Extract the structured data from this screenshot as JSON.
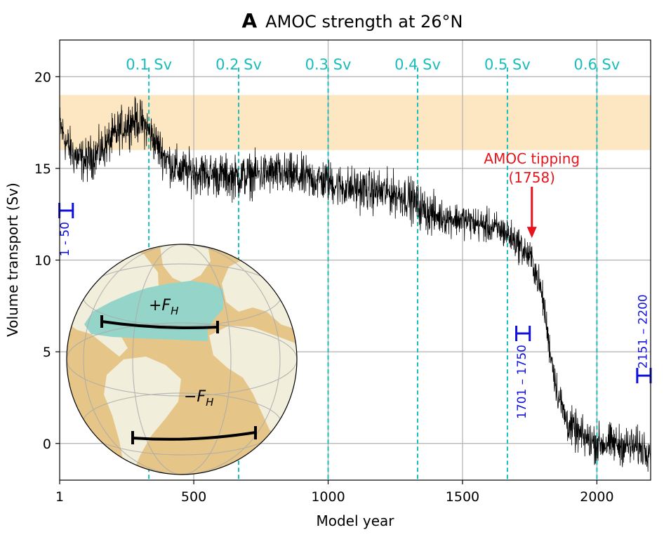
{
  "chart_data": {
    "type": "line",
    "panel_letter": "A",
    "title": "AMOC strength at 26°N",
    "xlabel": "Model year",
    "ylabel": "Volume transport (Sv)",
    "xlim": [
      1,
      2200
    ],
    "ylim": [
      -2,
      22
    ],
    "x_ticks": [
      1,
      500,
      1000,
      1500,
      2000
    ],
    "y_ticks": [
      0,
      5,
      10,
      15,
      20
    ],
    "grid": true,
    "observed_band": {
      "y0": 16,
      "y1": 19,
      "color": "#fde7c2"
    },
    "forcing_markers": [
      {
        "x": 333,
        "label": "0.1 Sv"
      },
      {
        "x": 667,
        "label": "0.2 Sv"
      },
      {
        "x": 1000,
        "label": "0.3 Sv"
      },
      {
        "x": 1333,
        "label": "0.4 Sv"
      },
      {
        "x": 1667,
        "label": "0.5 Sv"
      },
      {
        "x": 2000,
        "label": "0.6 Sv"
      }
    ],
    "forcing_color": "#17bebb",
    "series": [
      {
        "color": "#000000",
        "x": [
          1,
          25,
          50,
          75,
          100,
          125,
          150,
          175,
          200,
          225,
          250,
          275,
          300,
          325,
          350,
          375,
          400,
          425,
          450,
          475,
          500,
          550,
          600,
          650,
          700,
          750,
          800,
          850,
          900,
          950,
          1000,
          1050,
          1100,
          1150,
          1200,
          1250,
          1300,
          1350,
          1400,
          1450,
          1500,
          1550,
          1600,
          1650,
          1700,
          1730,
          1758,
          1780,
          1800,
          1820,
          1850,
          1880,
          1900,
          1950,
          2000,
          2050,
          2100,
          2150,
          2200
        ],
        "values": [
          17.4,
          16.4,
          15.8,
          15.5,
          15.4,
          15.7,
          15.9,
          16.3,
          16.7,
          17.1,
          17.4,
          17.6,
          17.6,
          17.2,
          16.6,
          16.0,
          15.5,
          15.1,
          14.9,
          14.8,
          14.8,
          14.7,
          14.6,
          14.5,
          14.6,
          14.7,
          14.7,
          14.6,
          14.5,
          14.4,
          14.3,
          14.0,
          13.9,
          13.8,
          13.7,
          13.6,
          13.4,
          12.8,
          12.4,
          12.3,
          12.2,
          12.0,
          11.8,
          11.6,
          11.0,
          10.5,
          10.0,
          9.0,
          7.8,
          5.6,
          3.0,
          1.5,
          0.9,
          0.3,
          0.0,
          0.0,
          -0.1,
          -0.2,
          -0.3
        ]
      }
    ],
    "averaging_windows": [
      {
        "label": "1 - 50",
        "x": 25,
        "y": 12.7,
        "half_width": 25
      },
      {
        "label": "1701 – 1750",
        "x": 1725,
        "y": 6.0,
        "half_width": 25
      },
      {
        "label": "2151 – 2200",
        "x": 2175,
        "y": 3.7,
        "half_width": 25
      }
    ],
    "window_color": "#1010dd",
    "annotation": {
      "text_line1": "AMOC tipping",
      "text_line2": "(1758)",
      "x": 1758,
      "arrow_from_y": 14.0,
      "arrow_to_y": 11.2,
      "color": "#e8141c"
    },
    "inset_globe": {
      "labels": [
        "+F",
        "−F"
      ],
      "subscript": "H",
      "ocean_color": "#e5c688",
      "land_color": "#f2eedc",
      "forcing_region_color": "#95d5c9"
    }
  }
}
